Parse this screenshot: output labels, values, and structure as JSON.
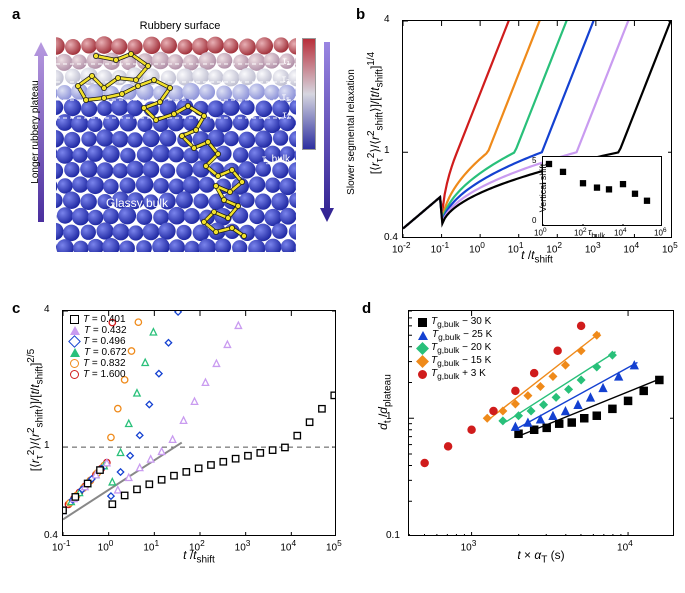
{
  "panel_a": {
    "label": "a",
    "top_text": "Rubbery surface",
    "left_text": "Longer rubbery plateau",
    "right_text": "Slower segmental relaxation",
    "inner_text": "Glassy bulk",
    "tau_labels": [
      "τ₁",
      "τ₃",
      "τ₅",
      "τ₇",
      "τ_bulk"
    ],
    "colorbar_top": "#b82f3b",
    "colorbar_mid": "#d6d6e0",
    "colorbar_bot": "#2d2fa0",
    "arrow_left": "#7e5bb7",
    "arrow_right": "#5945b3",
    "polymer_color": "#f2e12a",
    "bulk_color": "#2730c0",
    "surface_color": "#b43a44"
  },
  "panel_b": {
    "label": "b",
    "xlabel": "t /t_shift",
    "ylabel": "[⟨r_τ²⟩/⟨r²_shift⟩]/[t/t_shift]^{1/4}",
    "xlim_exp": [
      -2,
      5
    ],
    "ylim": [
      0.4,
      4
    ],
    "xtick_exp": [
      -2,
      -1,
      0,
      1,
      2,
      3,
      4,
      5
    ],
    "ytick": [
      0.4,
      1,
      4
    ],
    "series": [
      {
        "color": "#d01c1c",
        "onset_logx": -0.6
      },
      {
        "color": "#ef8a1a",
        "onset_logx": 0.2
      },
      {
        "color": "#29c07a",
        "onset_logx": 0.9
      },
      {
        "color": "#1441d1",
        "onset_logx": 1.6
      },
      {
        "color": "#c99bf0",
        "onset_logx": 2.5
      },
      {
        "color": "#000000",
        "onset_logx": 3.6
      }
    ],
    "early_ylog": -0.35,
    "plateau_ylog": 0.0,
    "rise_slope_log": 0.45,
    "inset": {
      "xlabel": "τ_bulk",
      "ylabel": "Vertical shift",
      "ylim": [
        0,
        8
      ],
      "ytick": [
        0,
        5
      ],
      "xlim_exp": [
        0,
        6
      ],
      "xtick_exp": [
        0,
        2,
        4,
        6
      ],
      "points": [
        [
          0.3,
          7.2
        ],
        [
          1.0,
          6.3
        ],
        [
          2.0,
          5.0
        ],
        [
          2.7,
          4.5
        ],
        [
          3.3,
          4.3
        ],
        [
          4.0,
          4.9
        ],
        [
          4.6,
          3.8
        ],
        [
          5.2,
          3.0
        ]
      ],
      "marker_color": "#000000"
    }
  },
  "panel_c": {
    "label": "c",
    "xlabel": "t /t_shift",
    "ylabel": "[⟨r_τ²⟩/⟨r²_shift⟩]/[t/t_shift]^{2/5}",
    "xlim_exp": [
      -1,
      5
    ],
    "ylim": [
      0.4,
      4
    ],
    "xtick_exp": [
      -1,
      0,
      1,
      2,
      3,
      4,
      5
    ],
    "ytick": [
      0.4,
      1,
      4
    ],
    "legend": [
      {
        "label": "T = 0.401",
        "color": "#000000",
        "shape": "square"
      },
      {
        "label": "T = 0.432",
        "color": "#c99bf0",
        "shape": "triangle"
      },
      {
        "label": "T = 0.496",
        "color": "#1441d1",
        "shape": "diamond"
      },
      {
        "label": "T = 0.672",
        "color": "#29c07a",
        "shape": "triangle"
      },
      {
        "label": "T = 0.832",
        "color": "#ef8a1a",
        "shape": "circle"
      },
      {
        "label": "T = 1.600",
        "color": "#d01c1c",
        "shape": "circle"
      }
    ],
    "dashed_line_ylog": 0.0,
    "grey_line_color": "#888888",
    "series": [
      {
        "color": "#d01c1c",
        "onset_logx": -0.5,
        "rise_slope": 0.95
      },
      {
        "color": "#ef8a1a",
        "onset_logx": 0.0,
        "rise_slope": 0.85
      },
      {
        "color": "#29c07a",
        "onset_logx": 0.3,
        "rise_slope": 0.75
      },
      {
        "color": "#1441d1",
        "onset_logx": 0.6,
        "rise_slope": 0.65
      },
      {
        "color": "#c99bf0",
        "onset_logx": 1.3,
        "rise_slope": 0.35
      },
      {
        "color": "#000000",
        "onset_logx": 3.9,
        "rise_slope": 0.22
      }
    ],
    "early_ylog": -0.28,
    "plateau_ylog": 0.0
  },
  "panel_d": {
    "label": "d",
    "xlabel": "t × α_T (s)",
    "ylabel": "d_t /d_plateau",
    "xlim_exp": [
      2.6,
      4.3
    ],
    "ylim": [
      0.1,
      8
    ],
    "xtick_exp": [
      3,
      4
    ],
    "ytick": [
      0.1,
      1
    ],
    "legend": [
      {
        "label": "T_{g,bulk} − 30 K",
        "color": "#000000",
        "shape": "square"
      },
      {
        "label": "T_{g,bulk} − 25 K",
        "color": "#1441d1",
        "shape": "triangle"
      },
      {
        "label": "T_{g,bulk} − 20 K",
        "color": "#29c07a",
        "shape": "diamond"
      },
      {
        "label": "T_{g,bulk} − 15 K",
        "color": "#ef8a1a",
        "shape": "diamond"
      },
      {
        "label": "T_{g,bulk} + 3 K",
        "color": "#d01c1c",
        "shape": "circle"
      }
    ],
    "series": [
      {
        "color": "#000000",
        "data": [
          [
            3.3,
            0.74
          ],
          [
            3.4,
            0.8
          ],
          [
            3.48,
            0.83
          ],
          [
            3.56,
            0.9
          ],
          [
            3.64,
            0.92
          ],
          [
            3.72,
            1.0
          ],
          [
            3.8,
            1.05
          ],
          [
            3.9,
            1.2
          ],
          [
            4.0,
            1.4
          ],
          [
            4.1,
            1.7
          ],
          [
            4.2,
            2.1
          ]
        ],
        "fit_logx": [
          3.32,
          4.22
        ],
        "fit_logy": [
          -0.14,
          0.34
        ]
      },
      {
        "color": "#1441d1",
        "data": [
          [
            3.28,
            0.85
          ],
          [
            3.36,
            0.92
          ],
          [
            3.44,
            0.98
          ],
          [
            3.52,
            1.05
          ],
          [
            3.6,
            1.15
          ],
          [
            3.68,
            1.3
          ],
          [
            3.76,
            1.5
          ],
          [
            3.84,
            1.8
          ],
          [
            3.94,
            2.25
          ],
          [
            4.04,
            2.8
          ]
        ],
        "fit_logx": [
          3.3,
          4.06
        ],
        "fit_logy": [
          -0.08,
          0.47
        ]
      },
      {
        "color": "#29c07a",
        "data": [
          [
            3.2,
            0.95
          ],
          [
            3.3,
            1.05
          ],
          [
            3.38,
            1.15
          ],
          [
            3.46,
            1.3
          ],
          [
            3.54,
            1.5
          ],
          [
            3.62,
            1.75
          ],
          [
            3.7,
            2.1
          ],
          [
            3.8,
            2.7
          ],
          [
            3.9,
            3.4
          ]
        ],
        "fit_logx": [
          3.22,
          3.92
        ],
        "fit_logy": [
          -0.03,
          0.56
        ]
      },
      {
        "color": "#ef8a1a",
        "data": [
          [
            3.1,
            1.0
          ],
          [
            3.2,
            1.15
          ],
          [
            3.28,
            1.32
          ],
          [
            3.36,
            1.55
          ],
          [
            3.44,
            1.85
          ],
          [
            3.52,
            2.25
          ],
          [
            3.6,
            2.8
          ],
          [
            3.7,
            3.7
          ],
          [
            3.8,
            5.0
          ]
        ],
        "fit_logx": [
          3.12,
          3.82
        ],
        "fit_logy": [
          0.0,
          0.72
        ]
      },
      {
        "color": "#d01c1c",
        "data": [
          [
            2.7,
            0.42
          ],
          [
            2.85,
            0.58
          ],
          [
            3.0,
            0.8
          ],
          [
            3.14,
            1.15
          ],
          [
            3.28,
            1.7
          ],
          [
            3.4,
            2.4
          ],
          [
            3.55,
            3.7
          ],
          [
            3.7,
            6.0
          ]
        ],
        "fit_logx": [],
        "fit_logy": []
      }
    ]
  }
}
